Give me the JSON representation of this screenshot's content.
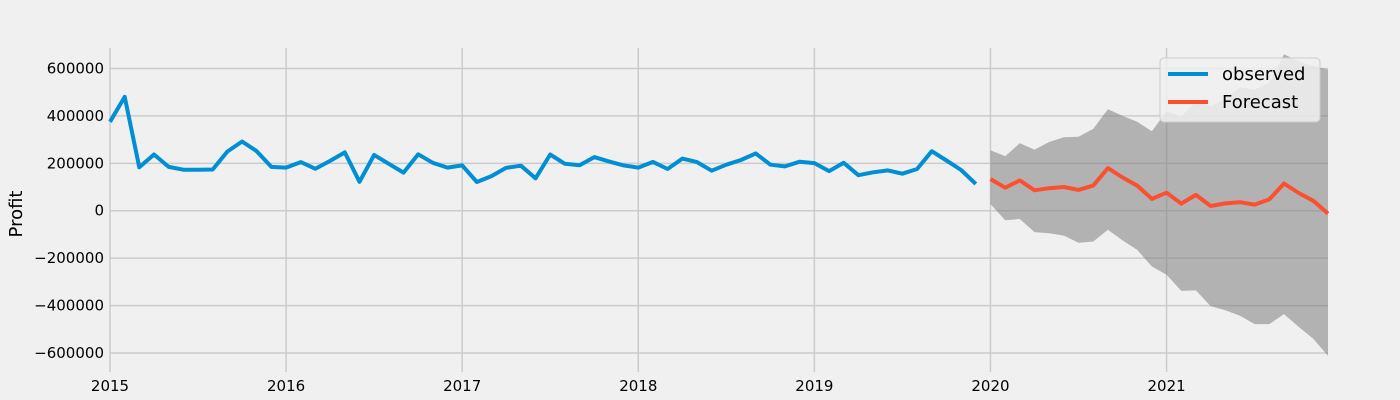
{
  "chart_data": {
    "type": "line",
    "title": "",
    "xlabel": "",
    "ylabel": "Profit",
    "xlim": [
      "2015-01-01",
      "2021-12-01"
    ],
    "ylim": [
      -680000,
      720000
    ],
    "grid": true,
    "legend_position": "top-right",
    "x_ticks": [
      "2015",
      "2016",
      "2017",
      "2018",
      "2019",
      "2020",
      "2021"
    ],
    "y_ticks": [
      {
        "value": 600000,
        "label": "600000"
      },
      {
        "value": 400000,
        "label": "400000"
      },
      {
        "value": 200000,
        "label": "200000"
      },
      {
        "value": 0,
        "label": "0"
      },
      {
        "value": -200000,
        "label": "−200000"
      },
      {
        "value": -400000,
        "label": "−400000"
      },
      {
        "value": -600000,
        "label": "−600000"
      }
    ],
    "colors": {
      "observed": "#008fd5",
      "forecast": "#fc4f30",
      "band": "#808080",
      "grid": "#cbcbcb",
      "background": "#f0f0f0"
    },
    "series": [
      {
        "name": "observed",
        "start": "2015-01",
        "values": [
          375000,
          480000,
          183000,
          237000,
          185000,
          173000,
          173000,
          174000,
          250000,
          292000,
          251000,
          185000,
          182000,
          205000,
          177000,
          210000,
          246000,
          122000,
          235000,
          198000,
          161000,
          238000,
          202000,
          182000,
          191000,
          121000,
          146000,
          181000,
          190000,
          137000,
          237000,
          198000,
          192000,
          226000,
          208000,
          191000,
          182000,
          206000,
          176000,
          220000,
          205000,
          169000,
          194000,
          214000,
          242000,
          194000,
          187000,
          207000,
          201000,
          167000,
          202000,
          150000,
          162000,
          170000,
          156000,
          176000,
          251000,
          212000,
          172000,
          113000
        ]
      },
      {
        "name": "Forecast",
        "start": "2020-01",
        "values": [
          134000,
          97000,
          128000,
          86000,
          95000,
          100000,
          88000,
          106000,
          180000,
          140000,
          106000,
          50000,
          76000,
          30000,
          67000,
          20000,
          31000,
          36000,
          26000,
          48000,
          115000,
          75000,
          42000,
          -12000
        ]
      }
    ],
    "confidence_band": {
      "start": "2020-01",
      "upper": [
        255000,
        230000,
        285000,
        258000,
        290000,
        310000,
        312000,
        345000,
        428000,
        400000,
        375000,
        335000,
        420000,
        398000,
        460000,
        440000,
        470000,
        520000,
        510000,
        540000,
        660000,
        630000,
        610000,
        595000
      ],
      "lower": [
        28000,
        -40000,
        -35000,
        -90000,
        -95000,
        -105000,
        -135000,
        -130000,
        -80000,
        -125000,
        -165000,
        -235000,
        -270000,
        -338000,
        -336000,
        -402000,
        -420000,
        -443000,
        -478000,
        -478000,
        -436000,
        -490000,
        -540000,
        -612000
      ]
    }
  }
}
